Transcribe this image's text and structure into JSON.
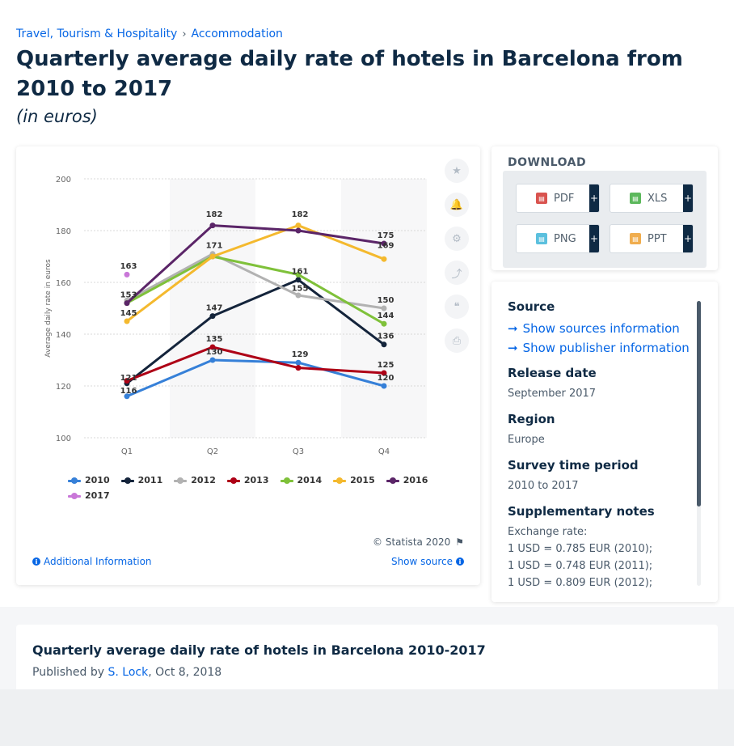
{
  "breadcrumb": {
    "item1": "Travel, Tourism & Hospitality",
    "sep": "›",
    "item2": "Accommodation"
  },
  "page": {
    "title": "Quarterly average daily rate of hotels in Barcelona from 2010 to 2017",
    "subtitle": "(in euros)"
  },
  "chart_data": {
    "type": "line",
    "categories": [
      "Q1",
      "Q2",
      "Q3",
      "Q4"
    ],
    "ylabel": "Average daily rate in euros",
    "ylim": [
      100,
      200
    ],
    "yticks": [
      100,
      120,
      140,
      160,
      180,
      200
    ],
    "grid": true,
    "legend_position": "bottom",
    "series": [
      {
        "name": "2010",
        "color": "#3680d8",
        "values": [
          116,
          130,
          129,
          120
        ]
      },
      {
        "name": "2011",
        "color": "#14243b",
        "values": [
          121,
          147,
          161,
          136
        ]
      },
      {
        "name": "2012",
        "color": "#b2b2b2",
        "values": [
          153,
          171,
          155,
          150
        ]
      },
      {
        "name": "2013",
        "color": "#ae0016",
        "values": [
          122,
          135,
          127,
          125
        ]
      },
      {
        "name": "2014",
        "color": "#7fc13a",
        "values": [
          152,
          170,
          163,
          144
        ]
      },
      {
        "name": "2015",
        "color": "#f4b92e",
        "values": [
          145,
          170,
          182,
          169
        ]
      },
      {
        "name": "2016",
        "color": "#5b2568",
        "values": [
          152,
          182,
          180,
          175
        ]
      },
      {
        "name": "2017",
        "color": "#c977d8",
        "values": [
          163,
          null,
          null,
          null
        ]
      }
    ],
    "data_labels": [
      {
        "text": "163",
        "x": 0,
        "y": 166.5
      },
      {
        "text": "153",
        "x": 0,
        "y": 155.5
      },
      {
        "text": "145",
        "x": 0,
        "y": 148.5
      },
      {
        "text": "121",
        "x": 0,
        "y": 123.5
      },
      {
        "text": "116",
        "x": 0,
        "y": 118.5
      },
      {
        "text": "182",
        "x": 1,
        "y": 186.5
      },
      {
        "text": "171",
        "x": 1,
        "y": 174.5
      },
      {
        "text": "147",
        "x": 1,
        "y": 150.5
      },
      {
        "text": "135",
        "x": 1,
        "y": 138.5
      },
      {
        "text": "130",
        "x": 1,
        "y": 133.5
      },
      {
        "text": "182",
        "x": 2,
        "y": 186.5
      },
      {
        "text": "161",
        "x": 2,
        "y": 164.5
      },
      {
        "text": "155",
        "x": 2,
        "y": 158
      },
      {
        "text": "129",
        "x": 2,
        "y": 132.5
      },
      {
        "text": "175",
        "x": 3,
        "y": 178.5
      },
      {
        "text": "169",
        "x": 3,
        "y": 174.5
      },
      {
        "text": "150",
        "x": 3,
        "y": 153.5
      },
      {
        "text": "144",
        "x": 3,
        "y": 147.5
      },
      {
        "text": "136",
        "x": 3,
        "y": 139.5
      },
      {
        "text": "125",
        "x": 3,
        "y": 128.5
      },
      {
        "text": "120",
        "x": 3,
        "y": 123.5
      }
    ]
  },
  "chart_footer": {
    "credit": "© Statista 2020",
    "additional_info": "Additional Information",
    "show_source": "Show source"
  },
  "download": {
    "title": "DOWNLOAD",
    "buttons": [
      {
        "label": "PDF",
        "icon": "pdf-icon",
        "color": "#d9534f"
      },
      {
        "label": "XLS",
        "icon": "xls-icon",
        "color": "#5cb85c"
      },
      {
        "label": "PNG",
        "icon": "png-icon",
        "color": "#5bc0de"
      },
      {
        "label": "PPT",
        "icon": "ppt-icon",
        "color": "#f0ad4e"
      }
    ],
    "plus": "+"
  },
  "info": {
    "source_label": "Source",
    "show_sources": "Show sources information",
    "show_publisher": "Show publisher information",
    "release_label": "Release date",
    "release_value": "September 2017",
    "region_label": "Region",
    "region_value": "Europe",
    "survey_label": "Survey time period",
    "survey_value": "2010 to 2017",
    "notes_label": "Supplementary notes",
    "notes_lines": [
      "Exchange rate:",
      "1 USD = 0.785 EUR (2010);",
      "1 USD = 0.748 EUR (2011);",
      "1 USD = 0.809 EUR (2012);"
    ]
  },
  "article": {
    "title": "Quarterly average daily rate of hotels in Barcelona 2010-2017",
    "published_by": "Published by",
    "author": "S. Lock",
    "date": ", Oct 8, 2018"
  }
}
